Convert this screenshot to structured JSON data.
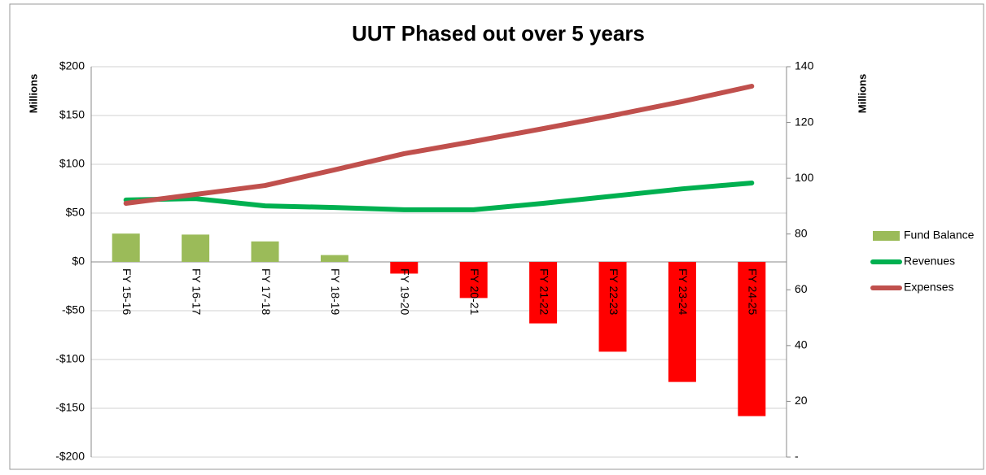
{
  "chart_data": {
    "type": "bar_line",
    "title": "UUT Phased out over 5 years",
    "y_label": "Millions",
    "y2_label": "Millions",
    "categories": [
      "FY 15-16",
      "FY 16-17",
      "FY 17-18",
      "FY 18-19",
      "FY 19-20",
      "FY 20-21",
      "FY 21-22",
      "FY 22-23",
      "FY 23-24",
      "FY 24-25"
    ],
    "series": [
      {
        "name": "Fund Balance",
        "type": "bar",
        "color": "#9bbb59",
        "negative_color": "#ff0000",
        "values": [
          29,
          28,
          21,
          7,
          -12,
          -37,
          -63,
          -92,
          -123,
          -158
        ]
      },
      {
        "name": "Revenues",
        "type": "line",
        "axis": "y2",
        "color": "#00b050",
        "values": [
          92.2,
          92.7,
          90.1,
          89.5,
          88.7,
          88.7,
          91,
          93.6,
          96.2,
          98.3
        ]
      },
      {
        "name": "Expenses",
        "type": "line",
        "axis": "y2",
        "color": "#c0504d",
        "values": [
          91,
          94.2,
          97.4,
          103,
          108.8,
          113.2,
          117.8,
          122.5,
          127.5,
          133
        ]
      }
    ],
    "ylim": [
      -200,
      200
    ],
    "yticks": [
      {
        "value": 200,
        "label": "$200"
      },
      {
        "value": 150,
        "label": "$150"
      },
      {
        "value": 100,
        "label": "$100"
      },
      {
        "value": 50,
        "label": "$50"
      },
      {
        "value": 0,
        "label": "$0"
      },
      {
        "value": -50,
        "label": "-$50"
      },
      {
        "value": -100,
        "label": "-$100"
      },
      {
        "value": -150,
        "label": "-$150"
      },
      {
        "value": -200,
        "label": "-$200"
      }
    ],
    "y2lim": [
      0,
      140
    ],
    "y2ticks": [
      140,
      120,
      100,
      80,
      60,
      40,
      20,
      {
        "value": 0,
        "label": "-"
      }
    ],
    "grid": true,
    "legend": "right"
  }
}
